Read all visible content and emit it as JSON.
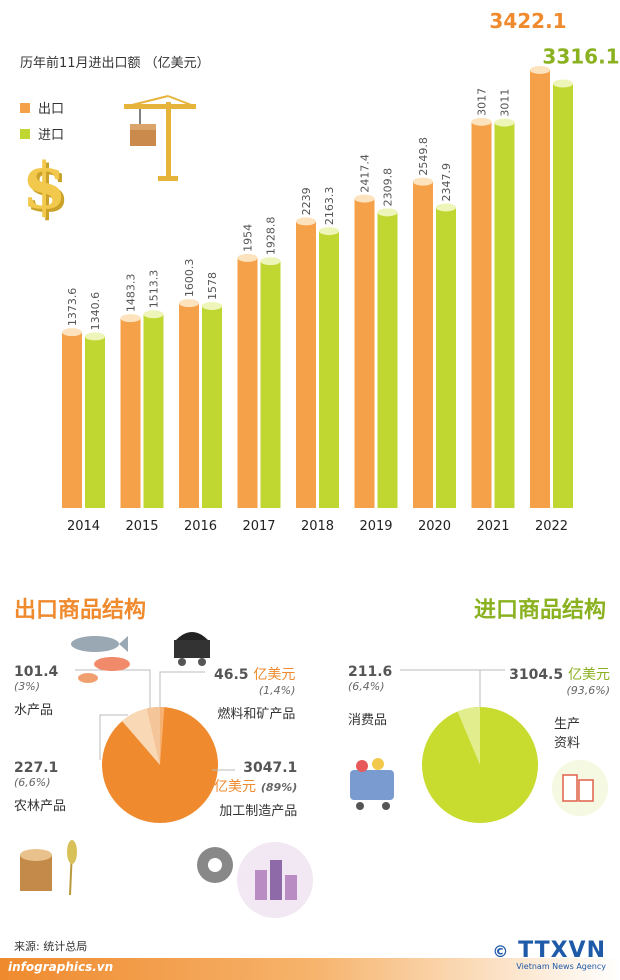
{
  "title": "历年前11月进出口额 （亿美元）",
  "legend": [
    {
      "label": "出口",
      "color": "#f5a14a"
    },
    {
      "label": "进口",
      "color": "#bfd730"
    }
  ],
  "chart_data": {
    "type": "bar",
    "categories": [
      "2014",
      "2015",
      "2016",
      "2017",
      "2018",
      "2019",
      "2020",
      "2021",
      "2022"
    ],
    "series": [
      {
        "name": "出口",
        "values": [
          1373.6,
          1483.3,
          1600.3,
          1954,
          2239,
          2417.4,
          2549.8,
          3017,
          3422.1
        ],
        "labels": [
          "1373.6",
          "1483.3",
          "1600.3",
          "1954",
          "2239",
          "2417.4",
          "2549.8",
          "3017",
          "3422.1"
        ]
      },
      {
        "name": "进口",
        "values": [
          1340.6,
          1513.3,
          1578,
          1928.8,
          2163.3,
          2309.8,
          2347.9,
          3011,
          3316.1
        ],
        "labels": [
          "1340.6",
          "1513.3",
          "1578",
          "1928.8",
          "2163.3",
          "2309.8",
          "2347.9",
          "3011",
          "3316.1"
        ]
      }
    ],
    "colors": {
      "export": "#f5a14a",
      "import": "#bfd730",
      "export_top": "#fde3bd",
      "import_top": "#eef5b8"
    }
  },
  "export_structure": {
    "title": "出口商品结构",
    "items": [
      {
        "value": "101.4",
        "pct": "(3%)",
        "label": "水产品"
      },
      {
        "value": "46.5",
        "unit": "亿美元",
        "pct": "(1,4%)",
        "label": "燃料和矿产品"
      },
      {
        "value": "227.1",
        "pct": "(6,6%)",
        "label": "农林产品"
      },
      {
        "value": "3047.1",
        "unit": "亿美元",
        "pct": "(89%)",
        "label": "加工制造产品"
      }
    ]
  },
  "import_structure": {
    "title": "进口商品结构",
    "items": [
      {
        "value": "211.6",
        "pct": "(6,4%)",
        "label": "消费品"
      },
      {
        "value": "3104.5",
        "unit": "亿美元",
        "pct": "(93,6%)",
        "label": "生产资料"
      }
    ]
  },
  "source": "来源: 统计总局",
  "site": "infographics.vn",
  "brand": "TTXVN",
  "brand_sub": "Vietnam News Agency",
  "icons": [
    "crane-icon",
    "dollar-icon",
    "fish-icon",
    "coal-cart-icon",
    "wood-icon",
    "wheat-icon",
    "factory-gears-icon",
    "shopping-cart-icon",
    "paper-roll-icon"
  ]
}
